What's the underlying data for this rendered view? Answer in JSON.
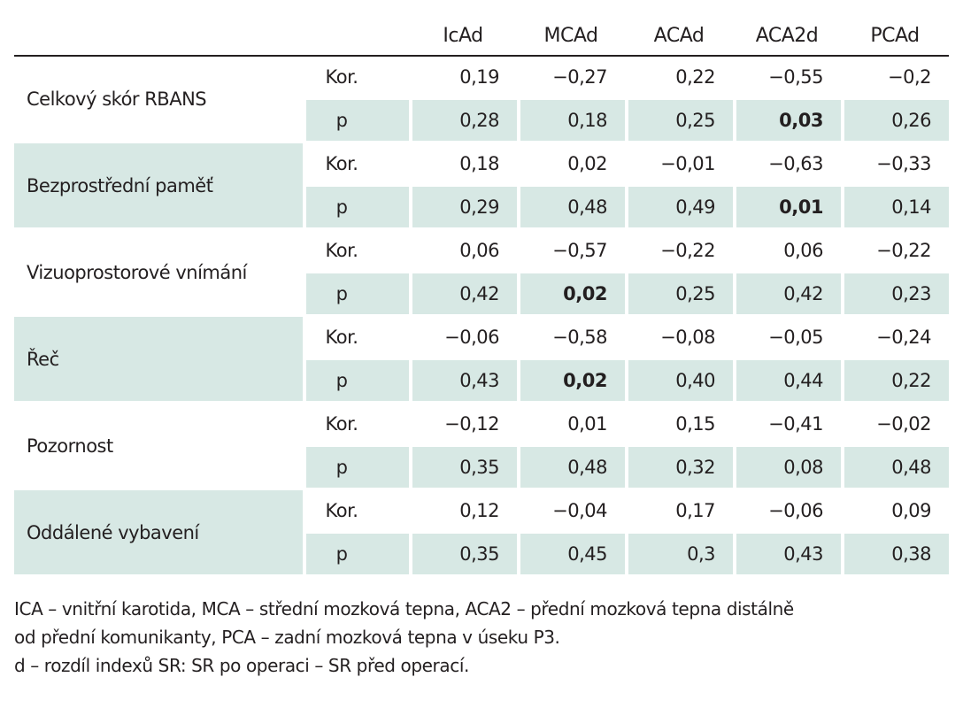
{
  "table": {
    "columns": [
      "IcAd",
      "MCAd",
      "ACAd",
      "ACA2d",
      "PCAd"
    ],
    "groups": [
      {
        "label": "Celkový skór RBANS",
        "rows": [
          {
            "stat": "Kor.",
            "values": [
              "0,19",
              "−0,27",
              "0,22",
              "−0,55",
              "−0,2"
            ]
          },
          {
            "stat": "p",
            "values": [
              "0,28",
              "0,18",
              "0,25",
              "0,03",
              "0,26"
            ]
          }
        ]
      },
      {
        "label": "Bezprostřední paměť",
        "rows": [
          {
            "stat": "Kor.",
            "values": [
              "0,18",
              "0,02",
              "−0,01",
              "−0,63",
              "−0,33"
            ]
          },
          {
            "stat": "p",
            "values": [
              "0,29",
              "0,48",
              "0,49",
              "0,01",
              "0,14"
            ]
          }
        ]
      },
      {
        "label": "Vizuoprostorové vnímání",
        "rows": [
          {
            "stat": "Kor.",
            "values": [
              "0,06",
              "−0,57",
              "−0,22",
              "0,06",
              "−0,22"
            ]
          },
          {
            "stat": "p",
            "values": [
              "0,42",
              "0,02",
              "0,25",
              "0,42",
              "0,23"
            ]
          }
        ]
      },
      {
        "label": "Řeč",
        "rows": [
          {
            "stat": "Kor.",
            "values": [
              "−0,06",
              "−0,58",
              "−0,08",
              "−0,05",
              "−0,24"
            ]
          },
          {
            "stat": "p",
            "values": [
              "0,43",
              "0,02",
              "0,40",
              "0,44",
              "0,22"
            ]
          }
        ]
      },
      {
        "label": "Pozornost",
        "rows": [
          {
            "stat": "Kor.",
            "values": [
              "−0,12",
              "0,01",
              "0,15",
              "−0,41",
              "−0,02"
            ]
          },
          {
            "stat": "p",
            "values": [
              "0,35",
              "0,48",
              "0,32",
              "0,08",
              "0,48"
            ]
          }
        ]
      },
      {
        "label": "Oddálené vybavení",
        "rows": [
          {
            "stat": "Kor.",
            "values": [
              "0,12",
              "−0,04",
              "0,17",
              "−0,06",
              "0,09"
            ]
          },
          {
            "stat": "p",
            "values": [
              "0,35",
              "0,45",
              "0,3",
              "0,43",
              "0,38"
            ]
          }
        ]
      }
    ]
  },
  "footnotes": {
    "line1": "ICA – vnitřní karotida, MCA – střední mozková tepna, ACA2 – přední mozková tepna distálně",
    "line2": "od přední komunikanty, PCA – zadní mozková tepna v úseku P3.",
    "line3": "d – rozdíl indexů SR: SR po operaci – SR před operací."
  },
  "colors": {
    "shade": "#d7e8e4",
    "text": "#231f20"
  }
}
